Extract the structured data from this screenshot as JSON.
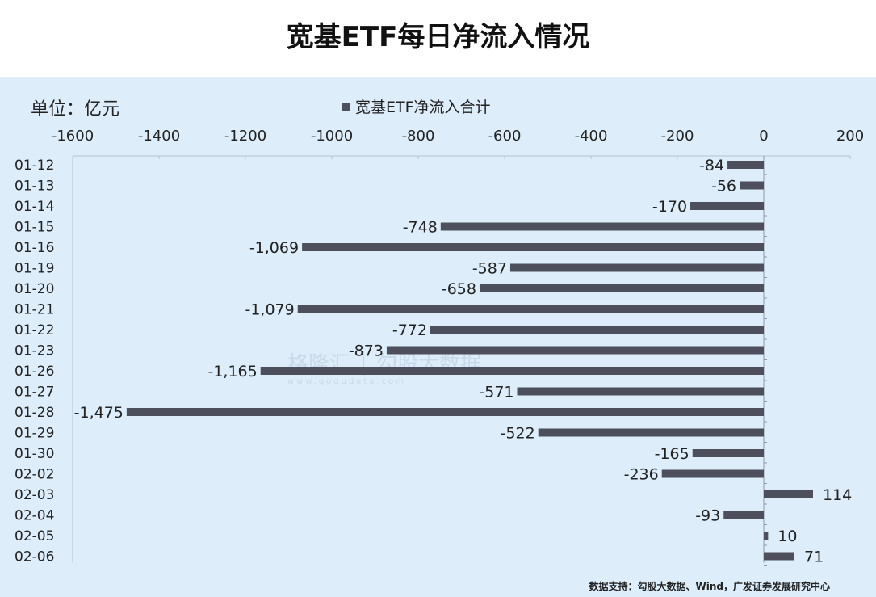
{
  "title": "宽基ETF每日净流入情况",
  "unit_label": "单位：亿元",
  "source": "数据支持：勾股大数据、Wind，广发证券发展研究中心",
  "watermark": {
    "text": "格隆汇 │ 勾股大数据",
    "sub": "www.gogudata.com"
  },
  "colors": {
    "bar": "#4d4f5c",
    "background": "#ddeefa"
  },
  "chart_data": {
    "type": "bar",
    "orientation": "horizontal",
    "categories": [
      "01-12",
      "01-13",
      "01-14",
      "01-15",
      "01-16",
      "01-19",
      "01-20",
      "01-21",
      "01-22",
      "01-23",
      "01-26",
      "01-27",
      "01-28",
      "01-29",
      "01-30",
      "02-02",
      "02-03",
      "02-04",
      "02-05",
      "02-06"
    ],
    "series": [
      {
        "name": "宽基ETF净流入合计",
        "values": [
          -84,
          -56,
          -170,
          -748,
          -1069,
          -587,
          -658,
          -1079,
          -772,
          -873,
          -1165,
          -571,
          -1475,
          -522,
          -165,
          -236,
          114,
          -93,
          10,
          71
        ]
      }
    ],
    "value_labels": [
      "-84",
      "-56",
      "-170",
      "-748",
      "-1,069",
      "-587",
      "-658",
      "-1,079",
      "-772",
      "-873",
      "-1,165",
      "-571",
      "-1,475",
      "-522",
      "-165",
      "-236",
      "114",
      "-93",
      "10",
      "71"
    ],
    "x_ticks": [
      -1600,
      -1400,
      -1200,
      -1000,
      -800,
      -600,
      -400,
      -200,
      0,
      200
    ],
    "xlim": [
      -1600,
      200
    ],
    "x_axis_position": "top",
    "legend_position": "top",
    "grid": false
  }
}
